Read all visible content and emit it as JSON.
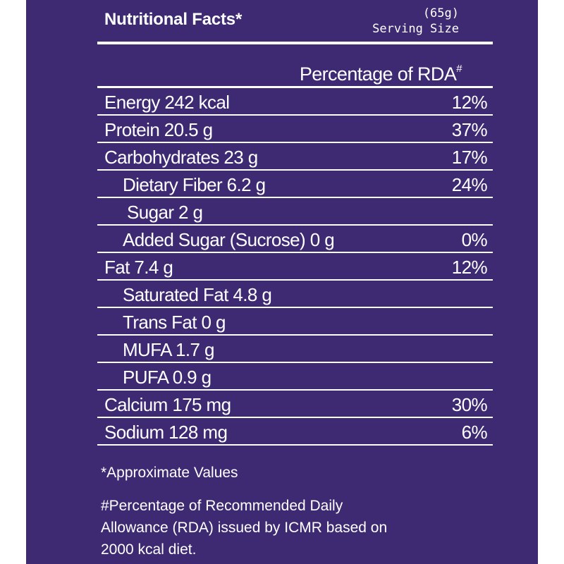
{
  "header": {
    "title": "Nutritional Facts*",
    "serving_amount": "(65g)",
    "serving_label": "Serving Size"
  },
  "table": {
    "column_header": "Percentage of RDA",
    "column_header_mark": "#",
    "rows": [
      {
        "name": "Energy 242 kcal",
        "pct": "12%"
      },
      {
        "name": "Protein 20.5 g",
        "pct": "37%"
      },
      {
        "name": "Carbohydrates 23 g",
        "pct": "17%"
      },
      {
        "name": "Dietary Fiber 6.2 g",
        "pct": "24%"
      },
      {
        "name": "Sugar 2 g",
        "pct": ""
      },
      {
        "name": "Added Sugar (Sucrose) 0 g",
        "pct": "0%"
      },
      {
        "name": "Fat  7.4 g",
        "pct": "12%"
      },
      {
        "name": "Saturated Fat 4.8 g",
        "pct": ""
      },
      {
        "name": "Trans Fat 0 g",
        "pct": ""
      },
      {
        "name": "MUFA 1.7 g",
        "pct": ""
      },
      {
        "name": "PUFA 0.9 g",
        "pct": ""
      },
      {
        "name": "Calcium 175 mg",
        "pct": "30%"
      },
      {
        "name": "Sodium 128 mg",
        "pct": "6%"
      }
    ]
  },
  "notes": {
    "approx": "*Approximate Values",
    "rda_line1": "#Percentage of Recommended Daily",
    "rda_line2": "Allowance (RDA) issued by ICMR based on",
    "rda_line3": "2000 kcal diet."
  },
  "colors": {
    "panel_background": "#3e2a73",
    "text": "#ffffff"
  }
}
